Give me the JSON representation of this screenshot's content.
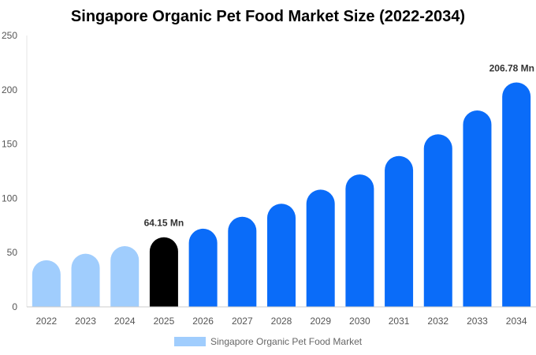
{
  "chart_data": {
    "type": "bar",
    "title": "Singapore Organic Pet Food Market Size (2022-2034)",
    "categories": [
      "2022",
      "2023",
      "2024",
      "2025",
      "2026",
      "2027",
      "2028",
      "2029",
      "2030",
      "2031",
      "2032",
      "2033",
      "2034"
    ],
    "series": [
      {
        "name": "Singapore Organic Pet Food Market",
        "values": [
          43,
          49,
          56,
          64.15,
          72,
          83,
          95,
          108,
          122,
          139,
          159,
          181,
          206.78
        ]
      }
    ],
    "data_labels": [
      {
        "category": "2025",
        "text": "64.15 Mn"
      },
      {
        "category": "2034",
        "text": "206.78 Mn"
      }
    ],
    "ylim": [
      0,
      250
    ],
    "yticks": [
      0,
      50,
      100,
      150,
      200,
      250
    ],
    "legend_position": "bottom",
    "colors": {
      "historical": "#a0cdfd",
      "current": "#000000",
      "forecast": "#0a6cf9",
      "legend": "#a0cdfd"
    }
  }
}
